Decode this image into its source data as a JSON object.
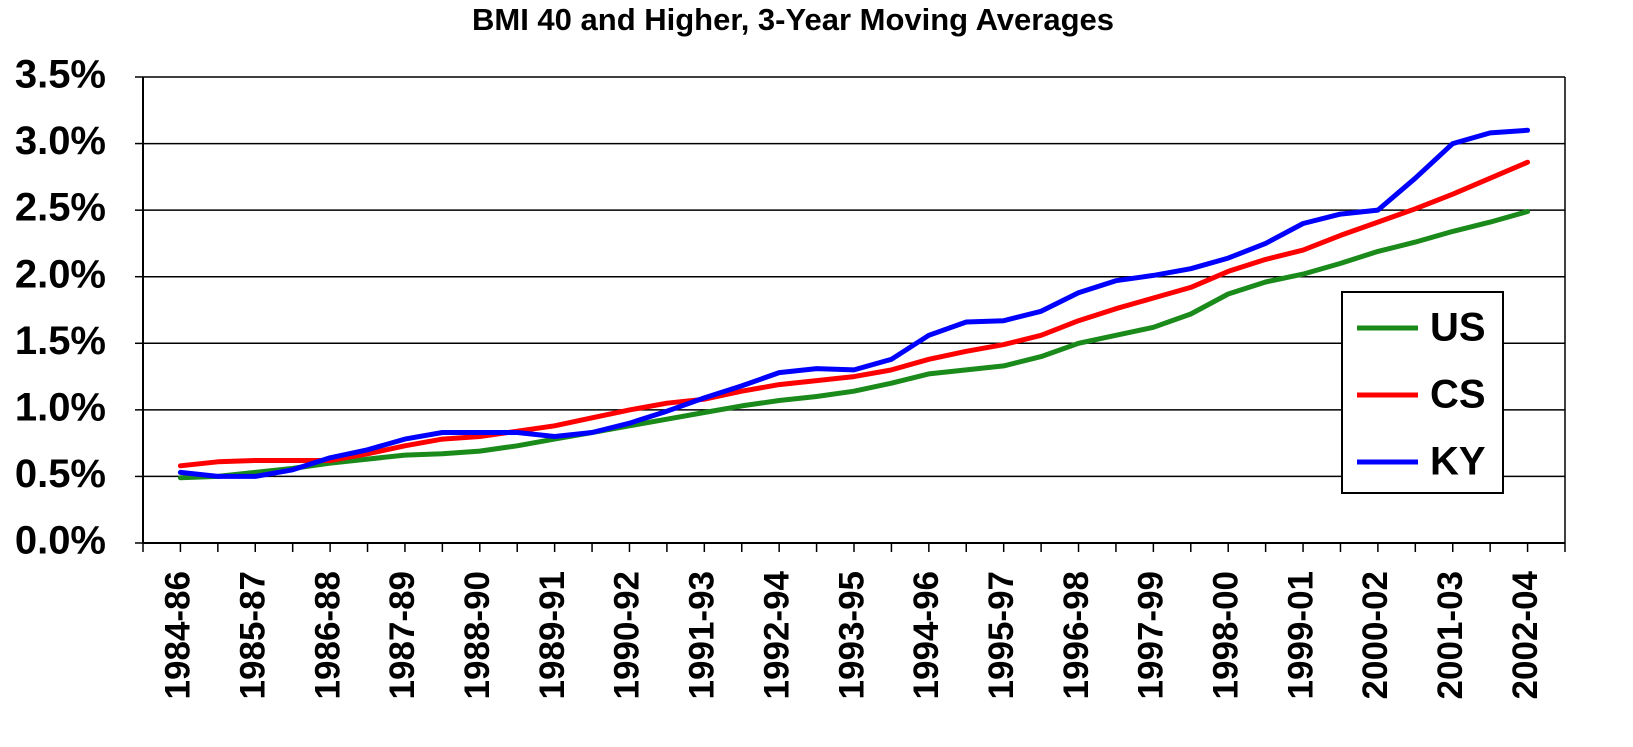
{
  "chart_data": {
    "type": "line",
    "title": "BMI 40 and Higher, 3-Year Moving Averages",
    "categories": [
      "1984-86",
      null,
      "1985-87",
      null,
      "1986-88",
      null,
      "1987-89",
      null,
      "1988-90",
      null,
      "1989-91",
      null,
      "1990-92",
      null,
      "1991-93",
      null,
      "1992-94",
      null,
      "1993-95",
      null,
      "1994-96",
      null,
      "1995-97",
      null,
      "1996-98",
      null,
      "1997-99",
      null,
      "1998-00",
      null,
      "1999-01",
      null,
      "2000-02",
      null,
      "2001-03",
      null,
      "2002-04"
    ],
    "series": [
      {
        "name": "US",
        "color": "#1a8a1a",
        "values": [
          0.49,
          0.5,
          0.53,
          0.56,
          0.6,
          0.63,
          0.66,
          0.67,
          0.69,
          0.73,
          0.78,
          0.83,
          0.88,
          0.93,
          0.98,
          1.03,
          1.07,
          1.1,
          1.14,
          1.2,
          1.27,
          1.3,
          1.33,
          1.4,
          1.5,
          1.56,
          1.62,
          1.72,
          1.87,
          1.96,
          2.02,
          2.1,
          2.19,
          2.26,
          2.34,
          2.41,
          2.49
        ]
      },
      {
        "name": "CS",
        "color": "#ff0000",
        "values": [
          0.58,
          0.61,
          0.62,
          0.62,
          0.62,
          0.67,
          0.73,
          0.78,
          0.8,
          0.84,
          0.88,
          0.94,
          1.0,
          1.05,
          1.08,
          1.14,
          1.19,
          1.22,
          1.25,
          1.3,
          1.38,
          1.44,
          1.49,
          1.56,
          1.67,
          1.76,
          1.84,
          1.92,
          2.04,
          2.13,
          2.2,
          2.31,
          2.41,
          2.51,
          2.62,
          2.74,
          2.86
        ]
      },
      {
        "name": "KY",
        "color": "#0000ff",
        "values": [
          0.53,
          0.5,
          0.5,
          0.55,
          0.64,
          0.7,
          0.78,
          0.83,
          0.83,
          0.83,
          0.8,
          0.83,
          0.9,
          0.99,
          1.09,
          1.18,
          1.28,
          1.31,
          1.3,
          1.38,
          1.56,
          1.66,
          1.67,
          1.74,
          1.88,
          1.97,
          2.01,
          2.06,
          2.14,
          2.25,
          2.4,
          2.47,
          2.5,
          2.74,
          3.0,
          3.08,
          3.1
        ]
      }
    ],
    "ylim": [
      0,
      3.5
    ],
    "yticks": [
      {
        "value": 0,
        "label": "0.0%"
      },
      {
        "value": 0.5,
        "label": "0.5%"
      },
      {
        "value": 1,
        "label": "1.0%"
      },
      {
        "value": 1.5,
        "label": "1.5%"
      },
      {
        "value": 2,
        "label": "2.0%"
      },
      {
        "value": 2.5,
        "label": "2.5%"
      },
      {
        "value": 3,
        "label": "3.0%"
      },
      {
        "value": 3.5,
        "label": "3.5%"
      }
    ],
    "grid": true,
    "legend": "right"
  }
}
